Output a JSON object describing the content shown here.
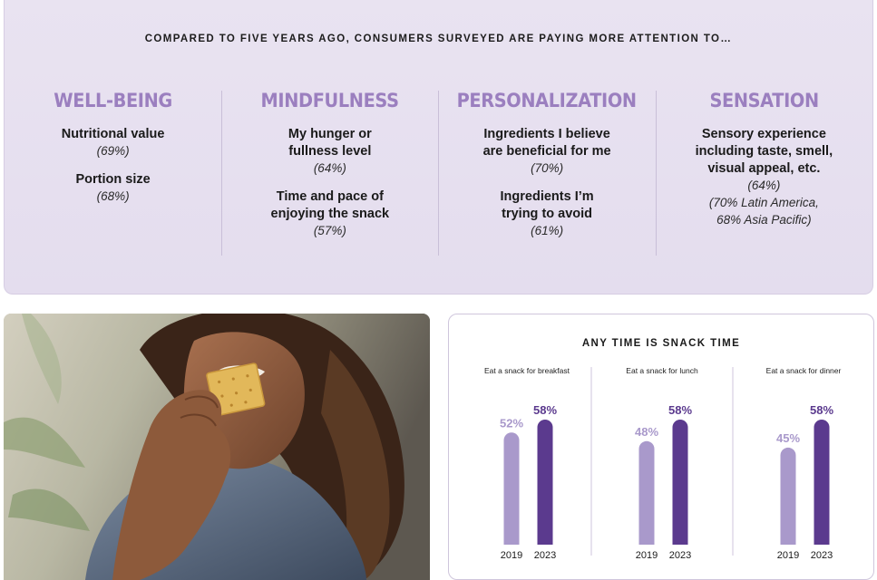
{
  "headline": "COMPARED TO FIVE YEARS AGO, CONSUMERS SURVEYED ARE PAYING MORE ATTENTION TO…",
  "columns": [
    {
      "theme": "WELL-BEING",
      "items": [
        {
          "label": "Nutritional value",
          "pct": "(69%)"
        },
        {
          "label": "Portion size",
          "pct": "(68%)"
        }
      ]
    },
    {
      "theme": "MINDFULNESS",
      "items": [
        {
          "label": "My hunger or fullness level",
          "pct": "(64%)"
        },
        {
          "label": "Time and pace of enjoying the snack",
          "pct": "(57%)"
        }
      ]
    },
    {
      "theme": "PERSONALIZATION",
      "items": [
        {
          "label": "Ingredients I believe are beneficial for me",
          "pct": "(70%)"
        },
        {
          "label": "Ingredients I’m trying to avoid",
          "pct": "(61%)"
        }
      ]
    },
    {
      "theme": "SENSATION",
      "items": [
        {
          "label": "Sensory experience including taste, smell, visual appeal, etc.",
          "pct": "(64%)",
          "note": "(70% Latin America, 68% Asia Pacific)"
        }
      ]
    }
  ],
  "chart_data": {
    "type": "bar",
    "title": "ANY TIME IS SNACK TIME",
    "unit": "%",
    "categories": [
      "2019",
      "2023"
    ],
    "panels": [
      {
        "title": "Eat a snack for breakfast",
        "values": [
          52,
          58
        ]
      },
      {
        "title": "Eat a snack for lunch",
        "values": [
          48,
          58
        ]
      },
      {
        "title": "Eat a snack for dinner",
        "values": [
          45,
          58
        ]
      }
    ],
    "ylim": [
      0,
      58
    ],
    "colors": {
      "2019": "#a999cb",
      "2023": "#5b3a8e",
      "label_2019": "#a999cb",
      "label_2023": "#5b3a8e"
    }
  },
  "colors": {
    "theme": "#9b7fbf",
    "panel_bg": "#e7e0ef"
  }
}
